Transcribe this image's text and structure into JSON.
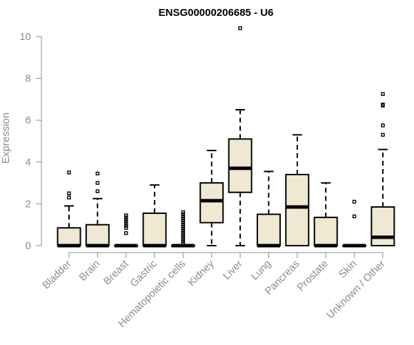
{
  "chart_data": {
    "type": "boxplot",
    "title": "ENSG00000206685 - U6",
    "xlabel": "",
    "ylabel": "Expression",
    "ylim": [
      0,
      10
    ],
    "yticks": [
      0,
      2,
      4,
      6,
      8,
      10
    ],
    "grid": false,
    "legend": "none",
    "box_fill": "#efe8d2",
    "categories": [
      "Bladder",
      "Brain",
      "Breast",
      "Gastric",
      "Hematopoietic cells",
      "Kidney",
      "Liver",
      "Lung",
      "Pancreas",
      "Prostate",
      "Skin",
      "Unknown / Other"
    ],
    "boxes": [
      {
        "name": "Bladder",
        "whisker_low": 0,
        "q1": 0,
        "median": 0,
        "q3": 0.85,
        "whisker_high": 1.9,
        "outliers": [
          2.3,
          2.5,
          3.5
        ]
      },
      {
        "name": "Brain",
        "whisker_low": 0,
        "q1": 0,
        "median": 0,
        "q3": 1.0,
        "whisker_high": 2.25,
        "outliers": [
          2.6,
          3.0,
          3.45
        ]
      },
      {
        "name": "Breast",
        "whisker_low": 0,
        "q1": 0,
        "median": 0,
        "q3": 0,
        "whisker_high": 0,
        "outliers": [
          0.6,
          0.85,
          0.95,
          1.05,
          1.15,
          1.25,
          1.35,
          1.45
        ]
      },
      {
        "name": "Gastric",
        "whisker_low": 0,
        "q1": 0,
        "median": 0,
        "q3": 1.55,
        "whisker_high": 2.9,
        "outliers": []
      },
      {
        "name": "Hematopoietic cells",
        "whisker_low": 0,
        "q1": 0,
        "median": 0,
        "q3": 0,
        "whisker_high": 0,
        "outliers": [
          0.1,
          0.2,
          0.3,
          0.4,
          0.5,
          0.6,
          0.7,
          0.8,
          0.9,
          1.0,
          1.1,
          1.2,
          1.3,
          1.4,
          1.5,
          1.6
        ]
      },
      {
        "name": "Kidney",
        "whisker_low": 0,
        "q1": 1.1,
        "median": 2.15,
        "q3": 3.0,
        "whisker_high": 4.55,
        "outliers": []
      },
      {
        "name": "Liver",
        "whisker_low": 0,
        "q1": 2.55,
        "median": 3.7,
        "q3": 5.1,
        "whisker_high": 6.5,
        "outliers": [
          10.4
        ]
      },
      {
        "name": "Lung",
        "whisker_low": 0,
        "q1": 0,
        "median": 0,
        "q3": 1.5,
        "whisker_high": 3.55,
        "outliers": []
      },
      {
        "name": "Pancreas",
        "whisker_low": 0,
        "q1": 0,
        "median": 1.85,
        "q3": 3.4,
        "whisker_high": 5.3,
        "outliers": []
      },
      {
        "name": "Prostate",
        "whisker_low": 0,
        "q1": 0,
        "median": 0,
        "q3": 1.35,
        "whisker_high": 3.0,
        "outliers": []
      },
      {
        "name": "Skin",
        "whisker_low": 0,
        "q1": 0,
        "median": 0,
        "q3": 0,
        "whisker_high": 0,
        "outliers": [
          1.4,
          2.1
        ]
      },
      {
        "name": "Unknown / Other",
        "whisker_low": 0,
        "q1": 0,
        "median": 0.4,
        "q3": 1.85,
        "whisker_high": 4.6,
        "outliers": [
          5.3,
          5.75,
          6.7,
          6.75,
          7.25
        ]
      }
    ]
  }
}
